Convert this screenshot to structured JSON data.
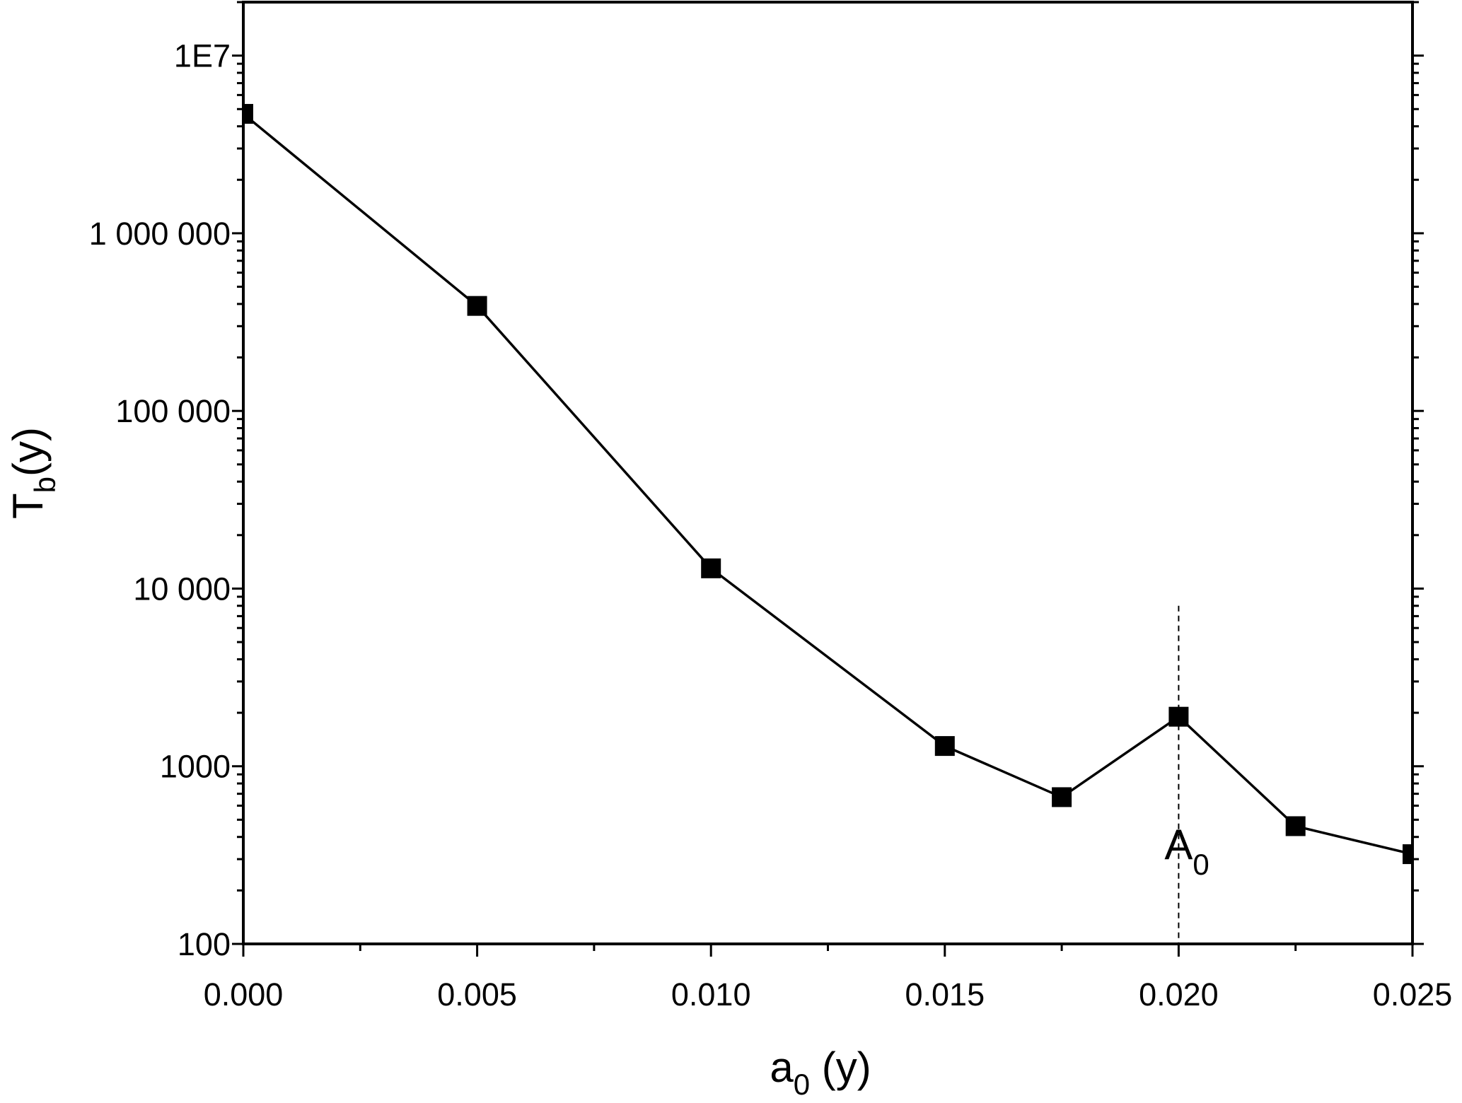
{
  "chart_data": {
    "type": "line",
    "xlabel": {
      "main": "a",
      "sub": "0",
      "rest": " (y)"
    },
    "ylabel": {
      "main": "T",
      "sub": "b",
      "rest": "(y)"
    },
    "x": [
      0,
      0.005,
      0.01,
      0.015,
      0.0175,
      0.02,
      0.0225,
      0.025
    ],
    "series": [
      {
        "color": "#000000",
        "values": [
          4700000,
          390000,
          13000,
          1300,
          670,
          1900,
          460,
          320
        ]
      }
    ],
    "xlim": [
      0,
      0.025
    ],
    "xticks": [
      {
        "value": 0,
        "label": "0.000"
      },
      {
        "value": 0.005,
        "label": "0.005"
      },
      {
        "value": 0.01,
        "label": "0.010"
      },
      {
        "value": 0.015,
        "label": "0.015"
      },
      {
        "value": 0.02,
        "label": "0.020"
      },
      {
        "value": 0.025,
        "label": "0.025"
      }
    ],
    "xminorticks": [
      0.0025,
      0.0075,
      0.0125,
      0.0175,
      0.0225
    ],
    "ylim": [
      100,
      20000000
    ],
    "yticks": [
      100,
      1000,
      {
        "value": 10000,
        "label": "10 000"
      },
      {
        "value": 100000,
        "label": "100 000"
      },
      {
        "value": 1000000,
        "label": "1 000 000"
      },
      {
        "value": 10000000,
        "label": "1E7"
      }
    ],
    "ylog": true,
    "marker": "square",
    "annotation": {
      "main": "A",
      "sub": "0",
      "x": 0.02,
      "line_top": 8000
    }
  }
}
